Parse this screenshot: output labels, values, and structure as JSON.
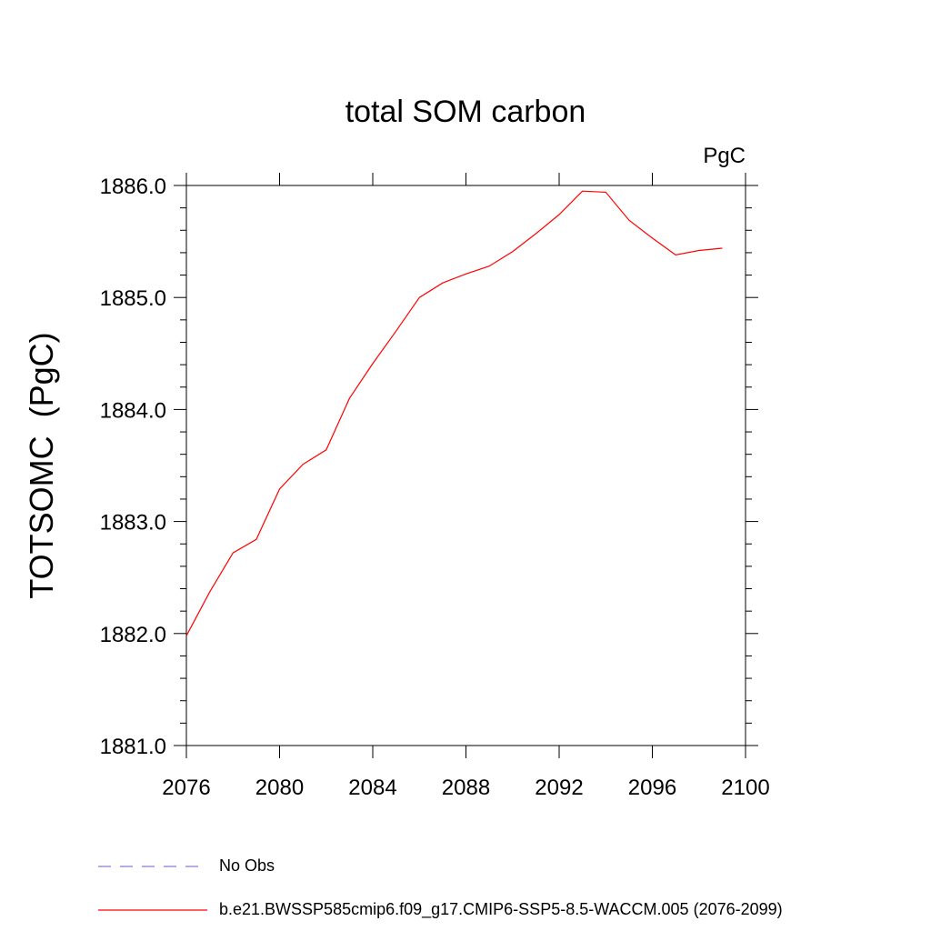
{
  "chart_data": {
    "type": "line",
    "title": "total SOM carbon",
    "units": "PgC",
    "ylabel": "TOTSOMC  (PgC)",
    "xlabel": "",
    "xlim": [
      2076,
      2100
    ],
    "ylim": [
      1881.0,
      1886.0
    ],
    "x_ticks": [
      2076,
      2080,
      2084,
      2088,
      2092,
      2096,
      2100
    ],
    "x_tick_labels": [
      "2076",
      "2080",
      "2084",
      "2088",
      "2092",
      "2096",
      "2100"
    ],
    "y_ticks": [
      1881.0,
      1882.0,
      1883.0,
      1884.0,
      1885.0,
      1886.0
    ],
    "y_tick_labels": [
      "1881.0",
      "1882.0",
      "1883.0",
      "1884.0",
      "1885.0",
      "1886.0"
    ],
    "grid": false,
    "legend_placement": "bottom",
    "series": [
      {
        "name": "b.e21.BWSSP585cmip6.f09_g17.CMIP6-SSP5-8.5-WACCM.005 (2076-2099)",
        "color": "#ff0000",
        "style": "solid",
        "x": [
          2076,
          2077,
          2078,
          2079,
          2080,
          2081,
          2082,
          2083,
          2084,
          2085,
          2086,
          2087,
          2088,
          2089,
          2090,
          2091,
          2092,
          2093,
          2094,
          2095,
          2096,
          2097,
          2098,
          2099
        ],
        "y": [
          1881.98,
          1882.37,
          1882.72,
          1882.84,
          1883.29,
          1883.51,
          1883.64,
          1884.1,
          1884.41,
          1884.7,
          1885.0,
          1885.13,
          1885.21,
          1885.28,
          1885.41,
          1885.57,
          1885.74,
          1885.95,
          1885.94,
          1885.69,
          1885.53,
          1885.38,
          1885.42,
          1885.44
        ]
      },
      {
        "name": "No Obs",
        "color": "#6a5acd",
        "style": "dashed",
        "x": [],
        "y": []
      }
    ]
  }
}
